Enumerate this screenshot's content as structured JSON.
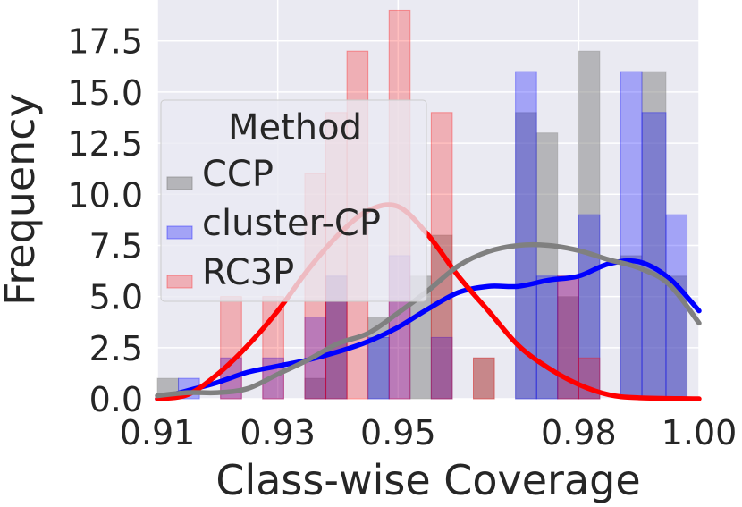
{
  "chart_data": {
    "type": "bar",
    "xlabel": "Class-wise Coverage",
    "ylabel": "Frequency",
    "xlim": [
      0.91,
      1.0
    ],
    "ylim": [
      0,
      19.5
    ],
    "xticks": [
      "0.91",
      "0.93",
      "0.95",
      "0.98",
      "1.00"
    ],
    "yticks": [
      "0.0",
      "2.5",
      "5.0",
      "7.5",
      "10.0",
      "12.5",
      "15.0",
      "17.5"
    ],
    "grid": true,
    "legend": {
      "title": "Method",
      "placement": "upper-left"
    },
    "series": [
      {
        "name": "CCP",
        "color": "#808080",
        "bars": [
          {
            "x0": 0.91,
            "x1": 0.9135,
            "y": 1
          },
          {
            "x0": 0.9345,
            "x1": 0.938,
            "y": 1
          },
          {
            "x0": 0.938,
            "x1": 0.9415,
            "y": 6
          },
          {
            "x0": 0.945,
            "x1": 0.9485,
            "y": 4
          },
          {
            "x0": 0.952,
            "x1": 0.9555,
            "y": 6
          },
          {
            "x0": 0.9555,
            "x1": 0.959,
            "y": 8
          },
          {
            "x0": 0.9625,
            "x1": 0.966,
            "y": 2
          },
          {
            "x0": 0.9695,
            "x1": 0.973,
            "y": 14
          },
          {
            "x0": 0.973,
            "x1": 0.9765,
            "y": 13
          },
          {
            "x0": 0.9765,
            "x1": 0.98,
            "y": 5
          },
          {
            "x0": 0.98,
            "x1": 0.9835,
            "y": 17
          },
          {
            "x0": 0.987,
            "x1": 0.9905,
            "y": 7
          },
          {
            "x0": 0.9905,
            "x1": 0.9945,
            "y": 16
          },
          {
            "x0": 0.9945,
            "x1": 0.998,
            "y": 6
          }
        ],
        "kde": [
          [
            0.91,
            0.15
          ],
          [
            0.915,
            0.3
          ],
          [
            0.92,
            0.3
          ],
          [
            0.925,
            0.5
          ],
          [
            0.93,
            1.2
          ],
          [
            0.935,
            1.9
          ],
          [
            0.94,
            2.7
          ],
          [
            0.945,
            3.2
          ],
          [
            0.95,
            4.2
          ],
          [
            0.955,
            5.3
          ],
          [
            0.96,
            6.5
          ],
          [
            0.965,
            7.2
          ],
          [
            0.97,
            7.5
          ],
          [
            0.975,
            7.5
          ],
          [
            0.98,
            7.25
          ],
          [
            0.985,
            6.8
          ],
          [
            0.99,
            6.4
          ],
          [
            0.995,
            5.6
          ],
          [
            1.0,
            3.7
          ]
        ]
      },
      {
        "name": "cluster-CP",
        "color": "#0000ff",
        "bars": [
          {
            "x0": 0.9135,
            "x1": 0.917,
            "y": 1
          },
          {
            "x0": 0.9205,
            "x1": 0.924,
            "y": 2
          },
          {
            "x0": 0.9275,
            "x1": 0.931,
            "y": 2
          },
          {
            "x0": 0.9345,
            "x1": 0.938,
            "y": 4
          },
          {
            "x0": 0.938,
            "x1": 0.9415,
            "y": 6
          },
          {
            "x0": 0.945,
            "x1": 0.9485,
            "y": 3
          },
          {
            "x0": 0.9485,
            "x1": 0.952,
            "y": 7
          },
          {
            "x0": 0.9555,
            "x1": 0.959,
            "y": 3
          },
          {
            "x0": 0.9695,
            "x1": 0.973,
            "y": 16
          },
          {
            "x0": 0.973,
            "x1": 0.9765,
            "y": 6
          },
          {
            "x0": 0.9765,
            "x1": 0.98,
            "y": 6
          },
          {
            "x0": 0.98,
            "x1": 0.9835,
            "y": 9
          },
          {
            "x0": 0.987,
            "x1": 0.9905,
            "y": 16
          },
          {
            "x0": 0.9905,
            "x1": 0.9945,
            "y": 14
          },
          {
            "x0": 0.9945,
            "x1": 0.998,
            "y": 9
          }
        ],
        "kde": [
          [
            0.91,
            0.0
          ],
          [
            0.915,
            0.4
          ],
          [
            0.92,
            0.8
          ],
          [
            0.925,
            1.3
          ],
          [
            0.93,
            1.6
          ],
          [
            0.935,
            1.9
          ],
          [
            0.94,
            2.3
          ],
          [
            0.945,
            2.8
          ],
          [
            0.95,
            3.5
          ],
          [
            0.955,
            4.4
          ],
          [
            0.96,
            5.2
          ],
          [
            0.965,
            5.5
          ],
          [
            0.97,
            5.5
          ],
          [
            0.975,
            5.8
          ],
          [
            0.98,
            6.0
          ],
          [
            0.985,
            6.6
          ],
          [
            0.99,
            6.7
          ],
          [
            0.995,
            5.9
          ],
          [
            1.0,
            4.3
          ]
        ]
      },
      {
        "name": "RC3P",
        "color": "#ff0000",
        "bars": [
          {
            "x0": 0.9205,
            "x1": 0.924,
            "y": 5
          },
          {
            "x0": 0.9275,
            "x1": 0.931,
            "y": 5
          },
          {
            "x0": 0.9345,
            "x1": 0.938,
            "y": 11
          },
          {
            "x0": 0.938,
            "x1": 0.9415,
            "y": 14
          },
          {
            "x0": 0.9415,
            "x1": 0.945,
            "y": 17
          },
          {
            "x0": 0.9485,
            "x1": 0.952,
            "y": 19
          },
          {
            "x0": 0.9555,
            "x1": 0.959,
            "y": 14
          },
          {
            "x0": 0.9625,
            "x1": 0.966,
            "y": 2
          },
          {
            "x0": 0.9765,
            "x1": 0.98,
            "y": 6
          },
          {
            "x0": 0.98,
            "x1": 0.9835,
            "y": 2
          }
        ],
        "kde": [
          [
            0.91,
            0.0
          ],
          [
            0.915,
            0.2
          ],
          [
            0.92,
            1.2
          ],
          [
            0.925,
            2.6
          ],
          [
            0.93,
            4.3
          ],
          [
            0.935,
            6.3
          ],
          [
            0.94,
            8.0
          ],
          [
            0.945,
            9.2
          ],
          [
            0.95,
            9.4
          ],
          [
            0.955,
            8.0
          ],
          [
            0.96,
            6.0
          ],
          [
            0.965,
            4.3
          ],
          [
            0.97,
            2.6
          ],
          [
            0.975,
            1.5
          ],
          [
            0.98,
            0.7
          ],
          [
            0.985,
            0.2
          ],
          [
            0.99,
            0.05
          ],
          [
            1.0,
            0.0
          ]
        ]
      }
    ]
  }
}
